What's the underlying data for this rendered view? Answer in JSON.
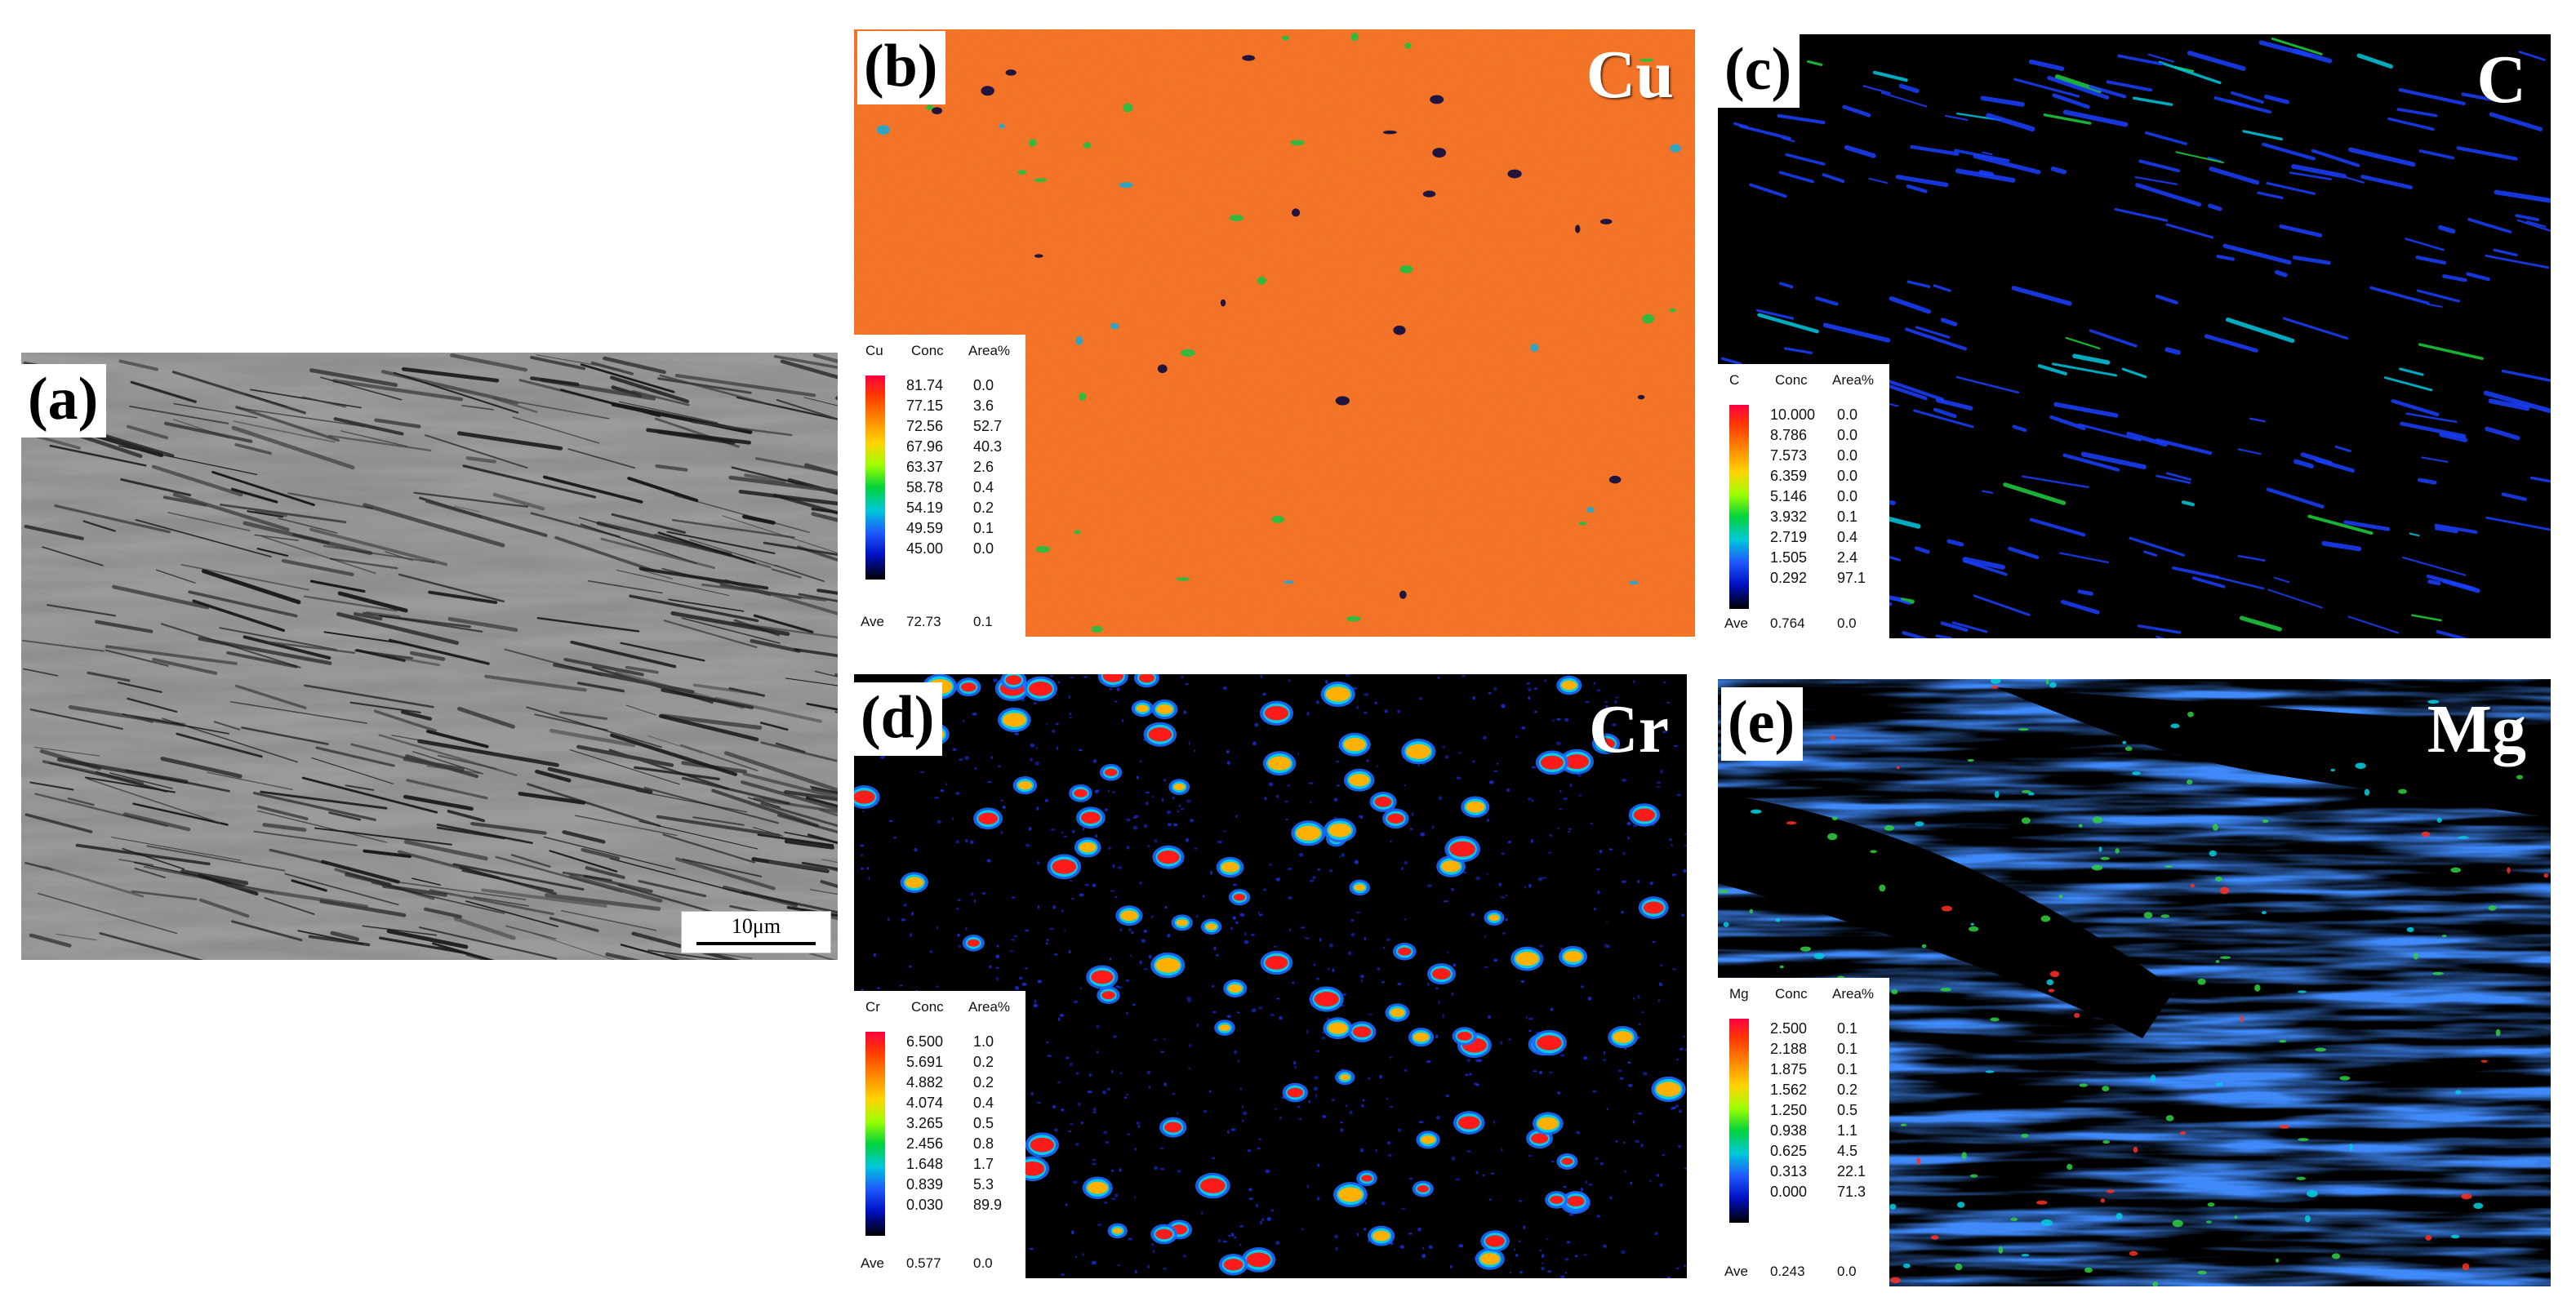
{
  "panels": {
    "a": {
      "label": "(a)",
      "scale_bar": "10μm"
    },
    "b": {
      "label": "(b)",
      "element": "Cu",
      "legend": {
        "element": "Cu",
        "conc_header": "Conc",
        "area_header": "Area%",
        "conc": [
          "81.74",
          "77.15",
          "72.56",
          "67.96",
          "63.37",
          "58.78",
          "54.19",
          "49.59",
          "45.00"
        ],
        "area": [
          "0.0",
          "3.6",
          "52.7",
          "40.3",
          "2.6",
          "0.4",
          "0.2",
          "0.1",
          "0.0"
        ],
        "ave_label": "Ave",
        "ave_value": "72.73",
        "ave_area": "0.1"
      }
    },
    "c": {
      "label": "(c)",
      "element": "C",
      "legend": {
        "element": "C",
        "conc_header": "Conc",
        "area_header": "Area%",
        "conc": [
          "10.000",
          "8.786",
          "7.573",
          "6.359",
          "5.146",
          "3.932",
          "2.719",
          "1.505",
          "0.292"
        ],
        "area": [
          "0.0",
          "0.0",
          "0.0",
          "0.0",
          "0.0",
          "0.1",
          "0.4",
          "2.4",
          "97.1"
        ],
        "ave_label": "Ave",
        "ave_value": "0.764",
        "ave_area": "0.0"
      }
    },
    "d": {
      "label": "(d)",
      "element": "Cr",
      "legend": {
        "element": "Cr",
        "conc_header": "Conc",
        "area_header": "Area%",
        "conc": [
          "6.500",
          "5.691",
          "4.882",
          "4.074",
          "3.265",
          "2.456",
          "1.648",
          "0.839",
          "0.030"
        ],
        "area": [
          "1.0",
          "0.2",
          "0.2",
          "0.4",
          "0.5",
          "0.8",
          "1.7",
          "5.3",
          "89.9"
        ],
        "ave_label": "Ave",
        "ave_value": "0.577",
        "ave_area": "0.0"
      }
    },
    "e": {
      "label": "(e)",
      "element": "Mg",
      "legend": {
        "element": "Mg",
        "conc_header": "Conc",
        "area_header": "Area%",
        "conc": [
          "2.500",
          "2.188",
          "1.875",
          "1.562",
          "1.250",
          "0.938",
          "0.625",
          "0.313",
          "0.000"
        ],
        "area": [
          "0.1",
          "0.1",
          "0.1",
          "0.2",
          "0.5",
          "1.1",
          "4.5",
          "22.1",
          "71.3"
        ],
        "ave_label": "Ave",
        "ave_value": "0.243",
        "ave_area": "0.0"
      }
    }
  },
  "colors": {
    "sem_gray": "#8c8c8c",
    "cu_base": "#f07a1e",
    "map_background": "#000000",
    "map_low": "#0a2bd8",
    "hot_red": "#ff1a1a"
  }
}
